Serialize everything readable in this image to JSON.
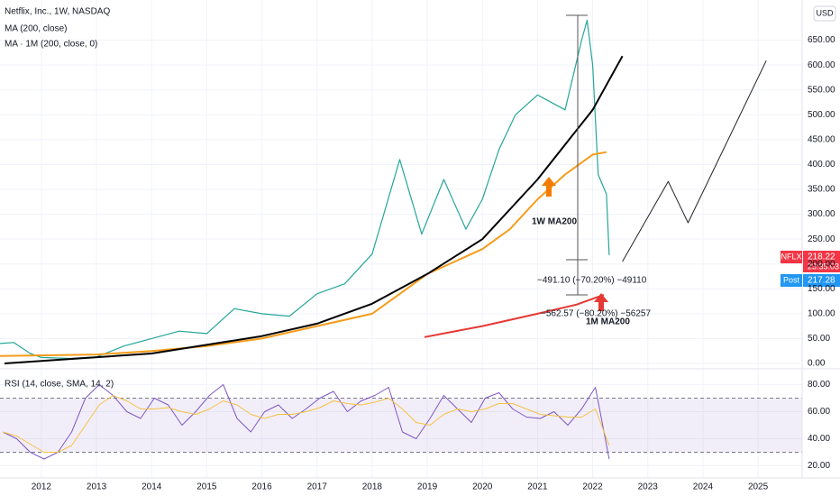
{
  "chart_data": [
    {
      "type": "line",
      "title": "Netflix, Inc., 1W, NASDAQ",
      "currency": "USD",
      "xlim": [
        2011.25,
        2025.8
      ],
      "xticks": [
        2012,
        2013,
        2014,
        2015,
        2016,
        2017,
        2018,
        2019,
        2020,
        2021,
        2022,
        2023,
        2024,
        2025
      ],
      "ylim": [
        0,
        720
      ],
      "yticks": [
        {
          "value": 0,
          "label": "0.00"
        },
        {
          "value": 50,
          "label": "50.00"
        },
        {
          "value": 100,
          "label": "100.00"
        },
        {
          "value": 150,
          "label": "150.00"
        },
        {
          "value": 200,
          "label": "200.00"
        },
        {
          "value": 250,
          "label": "250.00"
        },
        {
          "value": 300,
          "label": "300.00"
        },
        {
          "value": 350,
          "label": "350.00"
        },
        {
          "value": 400,
          "label": "400.00"
        },
        {
          "value": 450,
          "label": "450.00"
        },
        {
          "value": 500,
          "label": "500.00"
        },
        {
          "value": 550,
          "label": "550.00"
        },
        {
          "value": 600,
          "label": "600.00"
        },
        {
          "value": 650,
          "label": "650.00"
        }
      ],
      "series": [
        {
          "color": "#26a69a",
          "width": 1.2,
          "x": [
            2011.25,
            2011.5,
            2011.8,
            2012,
            2012.5,
            2013,
            2013.5,
            2014,
            2014.5,
            2015,
            2015.5,
            2016,
            2016.5,
            2017,
            2017.5,
            2018,
            2018.5,
            2018.9,
            2019.3,
            2019.7,
            2020,
            2020.3,
            2020.6,
            2021,
            2021.5,
            2021.8,
            2021.9,
            2022,
            2022.1,
            2022.25,
            2022.3
          ],
          "values": [
            40,
            42,
            20,
            12,
            10,
            13,
            35,
            50,
            65,
            60,
            110,
            100,
            95,
            140,
            160,
            220,
            410,
            260,
            370,
            270,
            330,
            430,
            500,
            540,
            510,
            650,
            690,
            600,
            380,
            340,
            218
          ]
        },
        {
          "name": "MA (200, close)",
          "color": "#f59c1a",
          "width": 2,
          "x": [
            2011.25,
            2013,
            2014,
            2015,
            2016,
            2017,
            2018,
            2019,
            2020,
            2020.5,
            2021,
            2021.5,
            2022,
            2022.25
          ],
          "values": [
            15,
            18,
            25,
            35,
            50,
            75,
            100,
            180,
            230,
            270,
            330,
            380,
            420,
            425
          ]
        },
        {
          "name": "MA · 1M (200, close, 0)",
          "color": "#e53935",
          "width": 2,
          "x": [
            2018.95,
            2020,
            2021,
            2021.7,
            2022.2
          ],
          "values": [
            53,
            75,
            100,
            118,
            138
          ]
        },
        {
          "color": "#000000",
          "width": 2,
          "x": [
            2011.33,
            2012,
            2014,
            2016,
            2017,
            2018,
            2019,
            2020,
            2021,
            2022,
            2022.54
          ],
          "values": [
            0,
            5,
            20,
            55,
            80,
            120,
            180,
            250,
            370,
            510,
            618
          ]
        },
        {
          "color": "#222222",
          "width": 1,
          "x": [
            2022.54,
            2023.37,
            2023.73,
            2025.15
          ],
          "values": [
            205,
            366,
            283,
            609
          ]
        }
      ],
      "annotations": [
        "1W MA200",
        "1M MA200",
        "−491.10 (−70.20%) −49110",
        "−562.57 (−80.20%) −56257"
      ],
      "price_labels": {
        "symbol": "NFLX",
        "price": "218.22",
        "countdown": "23:35:03",
        "post": "Post",
        "post_price": "217.28"
      }
    },
    {
      "type": "line",
      "title": "RSI (14, close, SMA, 14, 2)",
      "ylim": [
        11,
        91
      ],
      "yticks": [
        {
          "value": 20,
          "label": "20.00"
        },
        {
          "value": 40,
          "label": "40.00"
        },
        {
          "value": 60,
          "label": "60.00"
        },
        {
          "value": 80,
          "label": "80.00"
        }
      ],
      "bands": [
        30,
        70
      ],
      "series": [
        {
          "color": "#7e57c2",
          "width": 1,
          "x": [
            2011.3,
            2011.55,
            2011.8,
            2012.05,
            2012.3,
            2012.55,
            2012.8,
            2013.05,
            2013.3,
            2013.55,
            2013.8,
            2014.05,
            2014.3,
            2014.55,
            2014.8,
            2015.05,
            2015.3,
            2015.55,
            2015.8,
            2016.05,
            2016.3,
            2016.55,
            2016.8,
            2017.05,
            2017.3,
            2017.55,
            2017.8,
            2018.05,
            2018.3,
            2018.55,
            2018.8,
            2019.05,
            2019.3,
            2019.55,
            2019.8,
            2020.05,
            2020.3,
            2020.55,
            2020.8,
            2021.05,
            2021.3,
            2021.55,
            2021.8,
            2022.05,
            2022.3
          ],
          "values": [
            45,
            40,
            30,
            25,
            30,
            45,
            70,
            80,
            72,
            60,
            55,
            70,
            65,
            50,
            60,
            72,
            80,
            55,
            45,
            60,
            65,
            55,
            62,
            70,
            75,
            60,
            68,
            72,
            78,
            45,
            40,
            55,
            72,
            62,
            52,
            70,
            74,
            62,
            56,
            55,
            60,
            50,
            62,
            78,
            25
          ]
        },
        {
          "color": "#f5c243",
          "width": 1,
          "x": [
            2011.3,
            2011.55,
            2011.8,
            2012.05,
            2012.3,
            2012.55,
            2012.8,
            2013.05,
            2013.3,
            2013.55,
            2013.8,
            2014.05,
            2014.3,
            2014.55,
            2014.8,
            2015.05,
            2015.3,
            2015.55,
            2015.8,
            2016.05,
            2016.3,
            2016.55,
            2016.8,
            2017.05,
            2017.3,
            2017.55,
            2017.8,
            2018.05,
            2018.3,
            2018.55,
            2018.8,
            2019.05,
            2019.3,
            2019.55,
            2019.8,
            2020.05,
            2020.3,
            2020.55,
            2020.8,
            2021.05,
            2021.3,
            2021.55,
            2021.8,
            2022.05,
            2022.3
          ],
          "values": [
            45,
            42,
            36,
            30,
            30,
            35,
            50,
            65,
            72,
            68,
            62,
            62,
            63,
            60,
            58,
            62,
            68,
            65,
            58,
            55,
            58,
            58,
            60,
            63,
            68,
            66,
            65,
            67,
            70,
            62,
            52,
            50,
            58,
            62,
            60,
            62,
            66,
            66,
            62,
            58,
            57,
            56,
            56,
            62,
            35
          ]
        }
      ]
    }
  ]
}
